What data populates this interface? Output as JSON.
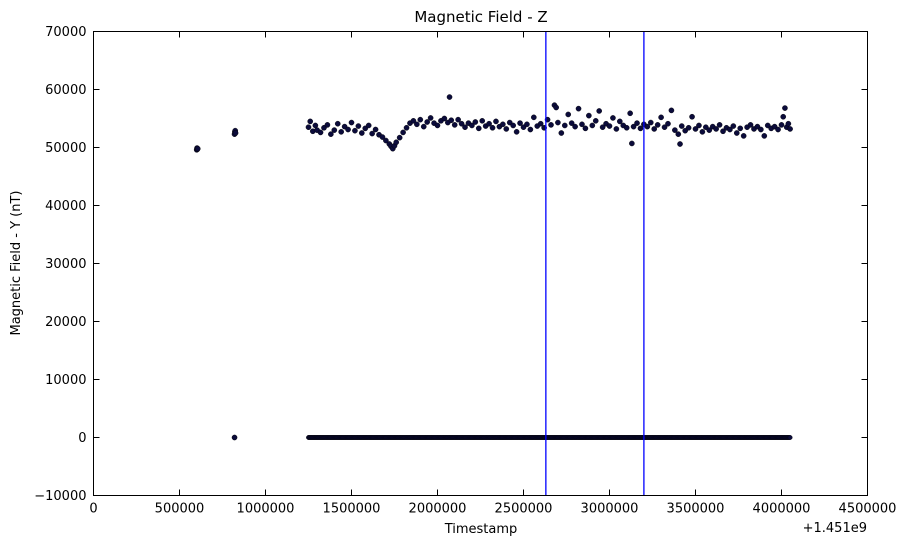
{
  "chart_data": {
    "type": "scatter",
    "title": "Magnetic Field - Z",
    "xlabel": "Timestamp",
    "ylabel": "Magnetic Field - Y (nT)",
    "x_offset_label": "+1.451e9",
    "xlim": [
      0,
      4500000
    ],
    "ylim": [
      -10000,
      70000
    ],
    "x_ticks": [
      0,
      500000,
      1000000,
      1500000,
      2000000,
      2500000,
      3000000,
      3500000,
      4000000,
      4500000
    ],
    "y_ticks": [
      -10000,
      0,
      10000,
      20000,
      30000,
      40000,
      50000,
      60000,
      70000
    ],
    "x_tick_labels": [
      "0",
      "500000",
      "1000000",
      "1500000",
      "2000000",
      "2500000",
      "3000000",
      "3500000",
      "4000000",
      "4500000"
    ],
    "y_tick_labels": [
      "−10000",
      "0",
      "10000",
      "20000",
      "30000",
      "40000",
      "50000",
      "60000",
      "70000"
    ],
    "grid": false,
    "vertical_lines": [
      {
        "x": 2630000,
        "color": "#0000ff"
      },
      {
        "x": 3200000,
        "color": "#0000ff"
      }
    ],
    "series": [
      {
        "color": "#0b0b3b",
        "points": [
          [
            600000,
            49600
          ],
          [
            602000,
            49900
          ],
          [
            604000,
            49700
          ],
          [
            606000,
            49800
          ],
          [
            820000,
            52300
          ],
          [
            822000,
            52700
          ],
          [
            824000,
            52900
          ],
          [
            826000,
            52500
          ],
          [
            820000,
            0
          ],
          [
            1250000,
            53500
          ],
          [
            1260000,
            54500
          ],
          [
            1275000,
            52800
          ],
          [
            1290000,
            53800
          ],
          [
            1300000,
            53000
          ],
          [
            1320000,
            52600
          ],
          [
            1340000,
            53400
          ],
          [
            1360000,
            53900
          ],
          [
            1380000,
            52300
          ],
          [
            1400000,
            53000
          ],
          [
            1420000,
            54100
          ],
          [
            1440000,
            52700
          ],
          [
            1460000,
            53600
          ],
          [
            1480000,
            53100
          ],
          [
            1500000,
            54300
          ],
          [
            1520000,
            52900
          ],
          [
            1540000,
            53700
          ],
          [
            1560000,
            52500
          ],
          [
            1580000,
            53300
          ],
          [
            1600000,
            53800
          ],
          [
            1620000,
            52400
          ],
          [
            1640000,
            53100
          ],
          [
            1660000,
            52200
          ],
          [
            1680000,
            51800
          ],
          [
            1700000,
            51200
          ],
          [
            1720000,
            50600
          ],
          [
            1730000,
            50200
          ],
          [
            1740000,
            49800
          ],
          [
            1750000,
            50300
          ],
          [
            1760000,
            50900
          ],
          [
            1780000,
            51700
          ],
          [
            1800000,
            52600
          ],
          [
            1820000,
            53400
          ],
          [
            1840000,
            54200
          ],
          [
            1860000,
            54600
          ],
          [
            1880000,
            54000
          ],
          [
            1900000,
            54800
          ],
          [
            1920000,
            53600
          ],
          [
            1940000,
            54400
          ],
          [
            1960000,
            55100
          ],
          [
            1980000,
            54200
          ],
          [
            2000000,
            53800
          ],
          [
            2020000,
            54600
          ],
          [
            2040000,
            55000
          ],
          [
            2060000,
            54300
          ],
          [
            2070000,
            58700
          ],
          [
            2080000,
            54700
          ],
          [
            2100000,
            53900
          ],
          [
            2120000,
            54800
          ],
          [
            2140000,
            54100
          ],
          [
            2160000,
            53500
          ],
          [
            2180000,
            54200
          ],
          [
            2200000,
            53800
          ],
          [
            2220000,
            54400
          ],
          [
            2240000,
            53300
          ],
          [
            2260000,
            54600
          ],
          [
            2280000,
            53700
          ],
          [
            2300000,
            54100
          ],
          [
            2320000,
            53400
          ],
          [
            2340000,
            54500
          ],
          [
            2360000,
            53600
          ],
          [
            2380000,
            54000
          ],
          [
            2400000,
            53200
          ],
          [
            2420000,
            54300
          ],
          [
            2440000,
            53800
          ],
          [
            2460000,
            52700
          ],
          [
            2480000,
            54200
          ],
          [
            2500000,
            53500
          ],
          [
            2520000,
            54000
          ],
          [
            2540000,
            53100
          ],
          [
            2560000,
            55200
          ],
          [
            2580000,
            53700
          ],
          [
            2600000,
            54100
          ],
          [
            2620000,
            53400
          ],
          [
            2640000,
            54800
          ],
          [
            2660000,
            53900
          ],
          [
            2680000,
            57300
          ],
          [
            2690000,
            56900
          ],
          [
            2700000,
            54300
          ],
          [
            2720000,
            52500
          ],
          [
            2740000,
            53800
          ],
          [
            2760000,
            55700
          ],
          [
            2780000,
            54200
          ],
          [
            2800000,
            53600
          ],
          [
            2820000,
            56700
          ],
          [
            2840000,
            54000
          ],
          [
            2860000,
            53300
          ],
          [
            2880000,
            55500
          ],
          [
            2900000,
            53800
          ],
          [
            2920000,
            54600
          ],
          [
            2940000,
            56300
          ],
          [
            2960000,
            53500
          ],
          [
            2980000,
            54100
          ],
          [
            3000000,
            53700
          ],
          [
            3020000,
            55100
          ],
          [
            3040000,
            53200
          ],
          [
            3060000,
            54500
          ],
          [
            3080000,
            53800
          ],
          [
            3100000,
            53400
          ],
          [
            3120000,
            55900
          ],
          [
            3130000,
            50700
          ],
          [
            3140000,
            53600
          ],
          [
            3160000,
            54200
          ],
          [
            3180000,
            53300
          ],
          [
            3200000,
            54000
          ],
          [
            3220000,
            53600
          ],
          [
            3240000,
            54300
          ],
          [
            3260000,
            53200
          ],
          [
            3280000,
            53900
          ],
          [
            3300000,
            55200
          ],
          [
            3320000,
            53500
          ],
          [
            3340000,
            54100
          ],
          [
            3360000,
            56400
          ],
          [
            3380000,
            53000
          ],
          [
            3400000,
            52300
          ],
          [
            3410000,
            50600
          ],
          [
            3420000,
            53700
          ],
          [
            3440000,
            52900
          ],
          [
            3460000,
            53400
          ],
          [
            3480000,
            55300
          ],
          [
            3500000,
            53200
          ],
          [
            3520000,
            53800
          ],
          [
            3540000,
            52700
          ],
          [
            3560000,
            53500
          ],
          [
            3580000,
            53000
          ],
          [
            3600000,
            53600
          ],
          [
            3620000,
            53200
          ],
          [
            3640000,
            53900
          ],
          [
            3660000,
            52800
          ],
          [
            3680000,
            53400
          ],
          [
            3700000,
            53100
          ],
          [
            3720000,
            53700
          ],
          [
            3740000,
            52500
          ],
          [
            3760000,
            53300
          ],
          [
            3780000,
            52000
          ],
          [
            3800000,
            53500
          ],
          [
            3820000,
            53900
          ],
          [
            3840000,
            53200
          ],
          [
            3860000,
            53600
          ],
          [
            3880000,
            53100
          ],
          [
            3900000,
            52000
          ],
          [
            3920000,
            53800
          ],
          [
            3940000,
            53300
          ],
          [
            3960000,
            53600
          ],
          [
            3980000,
            53100
          ],
          [
            4000000,
            53900
          ],
          [
            4010000,
            55300
          ],
          [
            4020000,
            56800
          ],
          [
            4030000,
            53500
          ],
          [
            4040000,
            54100
          ],
          [
            4050000,
            53200
          ]
        ]
      }
    ],
    "zero_band": {
      "from": 1250000,
      "to": 4050000,
      "value": 0
    }
  }
}
